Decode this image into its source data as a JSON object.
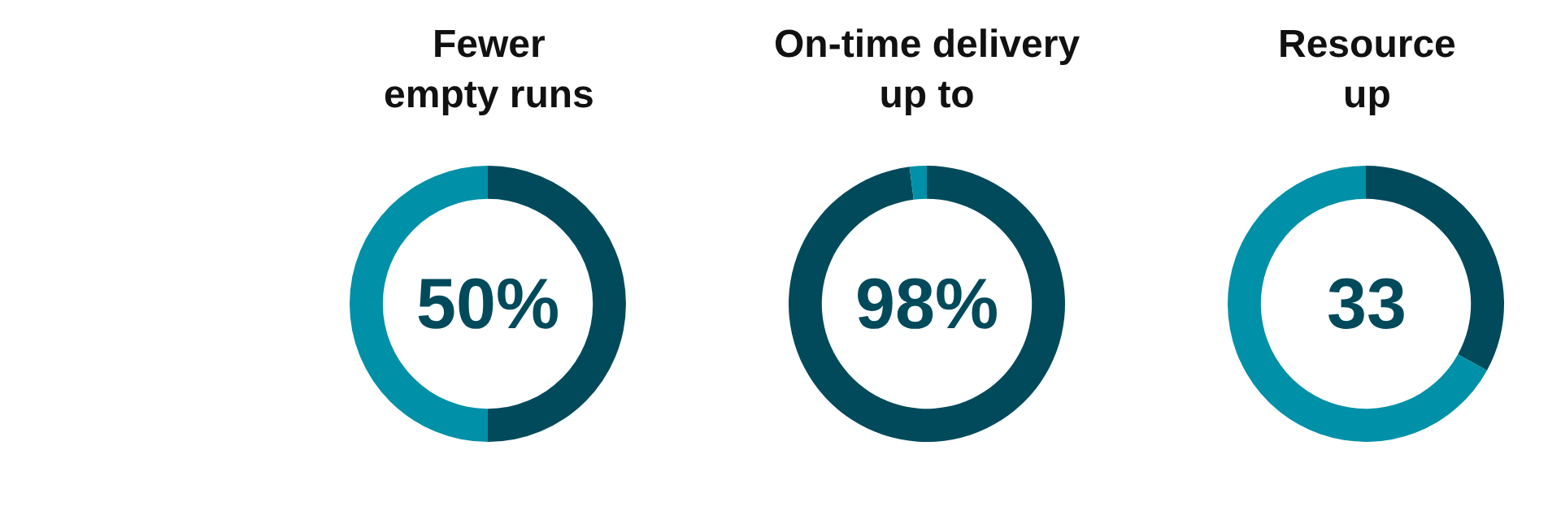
{
  "chart_data": [
    {
      "type": "donut",
      "title": "Fewer\nempty runs",
      "categories": [
        null,
        null
      ],
      "values": [
        50,
        50
      ],
      "colors": [
        "#004a5c",
        "#0090a8"
      ],
      "annotations": [
        "50%"
      ]
    },
    {
      "type": "donut",
      "title": "On-time delivery\nup to",
      "categories": [
        null,
        null
      ],
      "values": [
        98,
        2
      ],
      "colors": [
        "#004a5c",
        "#0090a8"
      ],
      "annotations": [
        "98%"
      ]
    },
    {
      "type": "donut",
      "title": "Resource\nup",
      "categories": [
        null,
        null
      ],
      "values": [
        33,
        67
      ],
      "colors": [
        "#004a5c",
        "#0090a8"
      ],
      "annotations": [
        "33"
      ]
    }
  ]
}
